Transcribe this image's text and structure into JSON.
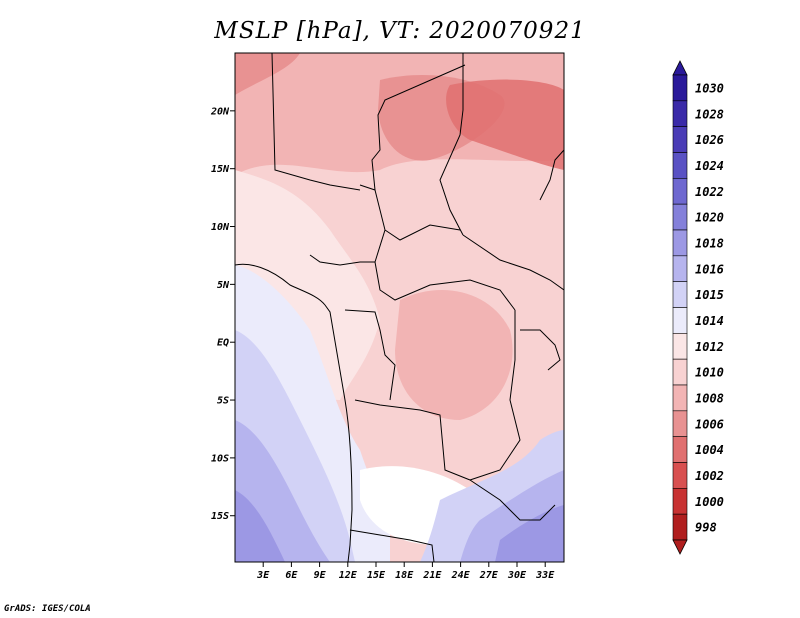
{
  "title": "MSLP [hPa], VT: 2020070921",
  "credit": "GrADS: IGES/COLA",
  "map": {
    "region": "Central & Southern Africa",
    "lat_range": [
      -19,
      25
    ],
    "lon_range": [
      0,
      35
    ],
    "lat_labels": [
      {
        "value": 20,
        "label": "20N"
      },
      {
        "value": 15,
        "label": "15N"
      },
      {
        "value": 10,
        "label": "10N"
      },
      {
        "value": 5,
        "label": "5N"
      },
      {
        "value": 0,
        "label": "EQ"
      },
      {
        "value": -5,
        "label": "5S"
      },
      {
        "value": -10,
        "label": "10S"
      },
      {
        "value": -15,
        "label": "15S"
      }
    ],
    "lon_labels": [
      {
        "value": 3,
        "label": "3E"
      },
      {
        "value": 6,
        "label": "6E"
      },
      {
        "value": 9,
        "label": "9E"
      },
      {
        "value": 12,
        "label": "12E"
      },
      {
        "value": 15,
        "label": "15E"
      },
      {
        "value": 18,
        "label": "18E"
      },
      {
        "value": 21,
        "label": "21E"
      },
      {
        "value": 24,
        "label": "24E"
      },
      {
        "value": 27,
        "label": "27E"
      },
      {
        "value": 30,
        "label": "30E"
      },
      {
        "value": 33,
        "label": "33E"
      }
    ]
  },
  "colorbar": {
    "levels": [
      {
        "label": "1030",
        "color": "#2a1a9a"
      },
      {
        "label": "1028",
        "color": "#3a2aa8"
      },
      {
        "label": "1026",
        "color": "#4a3cb6"
      },
      {
        "label": "1024",
        "color": "#5a52c4"
      },
      {
        "label": "1022",
        "color": "#6e68d0"
      },
      {
        "label": "1020",
        "color": "#8480da"
      },
      {
        "label": "1018",
        "color": "#9c98e4"
      },
      {
        "label": "1016",
        "color": "#b6b4ee"
      },
      {
        "label": "1015",
        "color": "#d2d2f6"
      },
      {
        "label": "1014",
        "color": "#ebebfb"
      },
      {
        "label": "1012",
        "color": "#fbe6e6"
      },
      {
        "label": "1010",
        "color": "#f8d2d2"
      },
      {
        "label": "1008",
        "color": "#f2b4b4"
      },
      {
        "label": "1006",
        "color": "#e89292"
      },
      {
        "label": "1004",
        "color": "#e07070"
      },
      {
        "label": "1002",
        "color": "#d85050"
      },
      {
        "label": "1000",
        "color": "#c83232"
      },
      {
        "label": "998",
        "color": "#b01e1e"
      }
    ],
    "top_arrow_color": "#2a1a9a",
    "bottom_arrow_color": "#b01e1e"
  }
}
